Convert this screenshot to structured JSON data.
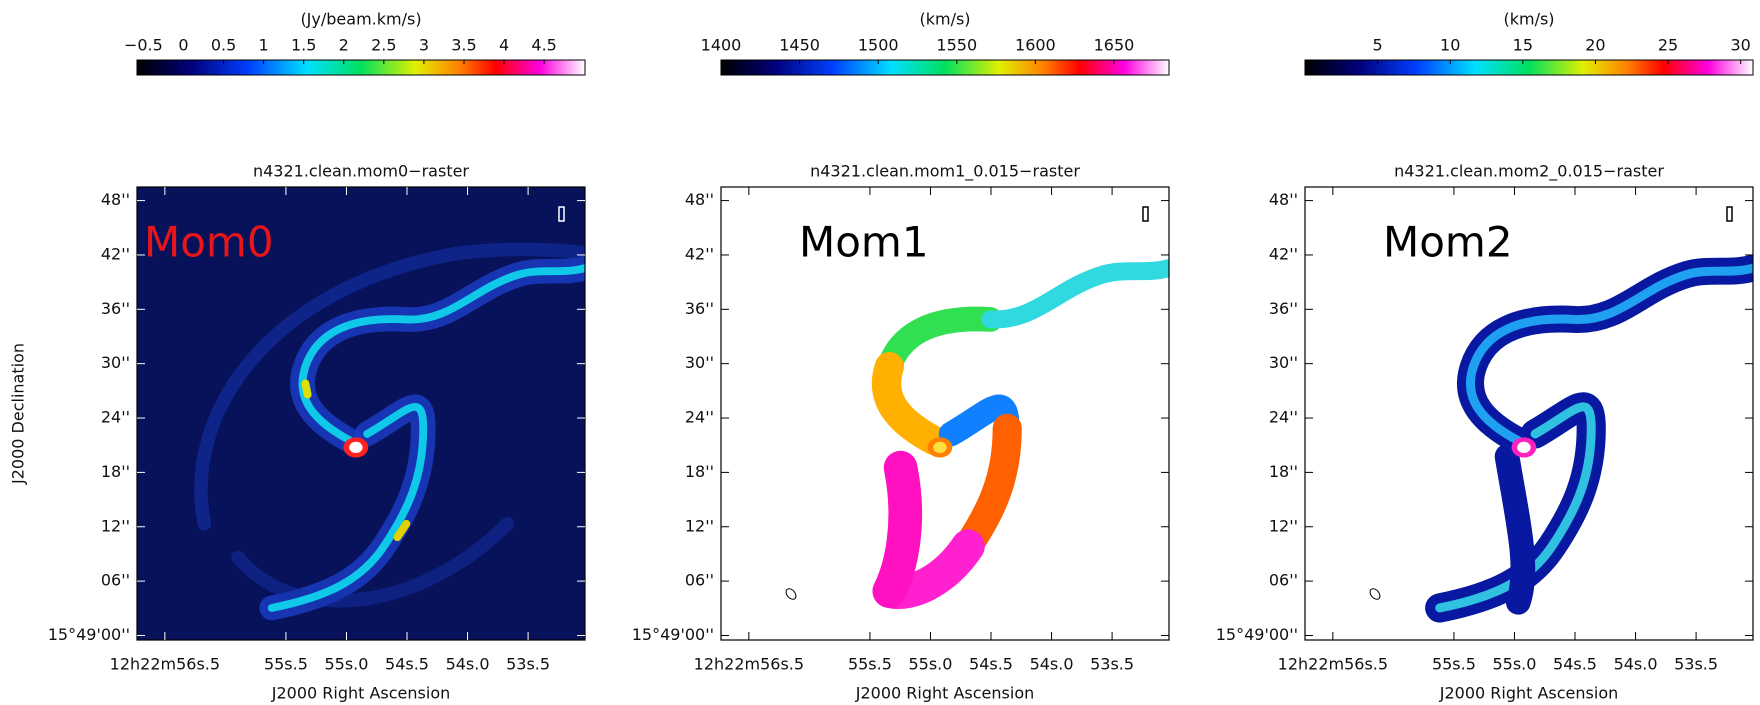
{
  "chart_data": [
    {
      "type": "image",
      "title": "n4321.clean.mom0−raster",
      "annotation": "Mom0",
      "annotation_color": "#e8151b",
      "colorbar": {
        "label": "(Jy/beam.km/s)",
        "lim": [
          -0.58,
          5.01
        ],
        "ticks": [
          {
            "value": -0.5,
            "label": "−0.5"
          },
          0,
          0.5,
          1,
          1.5,
          2,
          2.5,
          3,
          3.5,
          4,
          4.5
        ]
      },
      "ylabel": "J2000 Declination",
      "xlabel": "J2000 Right Ascension",
      "ylim": [
        -0.5,
        49.5
      ],
      "yticks": [
        {
          "value": 0,
          "label": "15°49'00''"
        },
        {
          "value": 6,
          "label": "06''"
        },
        {
          "value": 12,
          "label": "12''"
        },
        {
          "value": 18,
          "label": "18''"
        },
        {
          "value": 24,
          "label": "24''"
        },
        {
          "value": 30,
          "label": "30''"
        },
        {
          "value": 36,
          "label": "36''"
        },
        {
          "value": 42,
          "label": "42''"
        },
        {
          "value": 48,
          "label": "48''"
        }
      ],
      "xlim": [
        56.73,
        53.03
      ],
      "xticks": [
        {
          "value": 56.5,
          "label": "12h22m56s.5"
        },
        {
          "value": 55.5,
          "label": "55s.5"
        },
        {
          "value": 55.0,
          "label": "55s.0"
        },
        {
          "value": 54.5,
          "label": "54s.5"
        },
        {
          "value": 54.0,
          "label": "54s.0"
        },
        {
          "value": 53.5,
          "label": "53s.5"
        }
      ]
    },
    {
      "type": "image",
      "title": "n4321.clean.mom1_0.015−raster",
      "annotation": "Mom1",
      "annotation_color": "#000000",
      "colorbar": {
        "label": "(km/s)",
        "lim": [
          1400,
          1685
        ],
        "ticks": [
          1400,
          1450,
          1500,
          1550,
          1600,
          1650
        ]
      },
      "xlabel": "J2000 Right Ascension",
      "ylim": [
        -0.5,
        49.5
      ],
      "yticks": [
        {
          "value": 0,
          "label": "15°49'00''"
        },
        {
          "value": 6,
          "label": "06''"
        },
        {
          "value": 12,
          "label": "12''"
        },
        {
          "value": 18,
          "label": "18''"
        },
        {
          "value": 24,
          "label": "24''"
        },
        {
          "value": 30,
          "label": "30''"
        },
        {
          "value": 36,
          "label": "36''"
        },
        {
          "value": 42,
          "label": "42''"
        },
        {
          "value": 48,
          "label": "48''"
        }
      ],
      "xlim": [
        56.73,
        53.03
      ],
      "xticks": [
        {
          "value": 56.5,
          "label": "12h22m56s.5"
        },
        {
          "value": 55.5,
          "label": "55s.5"
        },
        {
          "value": 55.0,
          "label": "55s.0"
        },
        {
          "value": 54.5,
          "label": "54s.5"
        },
        {
          "value": 54.0,
          "label": "54s.0"
        },
        {
          "value": 53.5,
          "label": "53s.5"
        }
      ]
    },
    {
      "type": "image",
      "title": "n4321.clean.mom2_0.015−raster",
      "annotation": "Mom2",
      "annotation_color": "#000000",
      "colorbar": {
        "label": "(km/s)",
        "lim": [
          0,
          30.85
        ],
        "ticks": [
          5,
          10,
          15,
          20,
          25,
          30
        ]
      },
      "xlabel": "J2000 Right Ascension",
      "ylim": [
        -0.5,
        49.5
      ],
      "yticks": [
        {
          "value": 0,
          "label": "15°49'00''"
        },
        {
          "value": 6,
          "label": "06''"
        },
        {
          "value": 12,
          "label": "12''"
        },
        {
          "value": 18,
          "label": "18''"
        },
        {
          "value": 24,
          "label": "24''"
        },
        {
          "value": 30,
          "label": "30''"
        },
        {
          "value": 36,
          "label": "36''"
        },
        {
          "value": 42,
          "label": "42''"
        },
        {
          "value": 48,
          "label": "48''"
        }
      ],
      "xlim": [
        56.73,
        53.03
      ],
      "xticks": [
        {
          "value": 56.5,
          "label": "12h22m56s.5"
        },
        {
          "value": 55.5,
          "label": "55s.5"
        },
        {
          "value": 55.0,
          "label": "55s.0"
        },
        {
          "value": 54.5,
          "label": "54s.5"
        },
        {
          "value": 54.0,
          "label": "54s.0"
        },
        {
          "value": 53.5,
          "label": "53s.5"
        }
      ]
    }
  ]
}
